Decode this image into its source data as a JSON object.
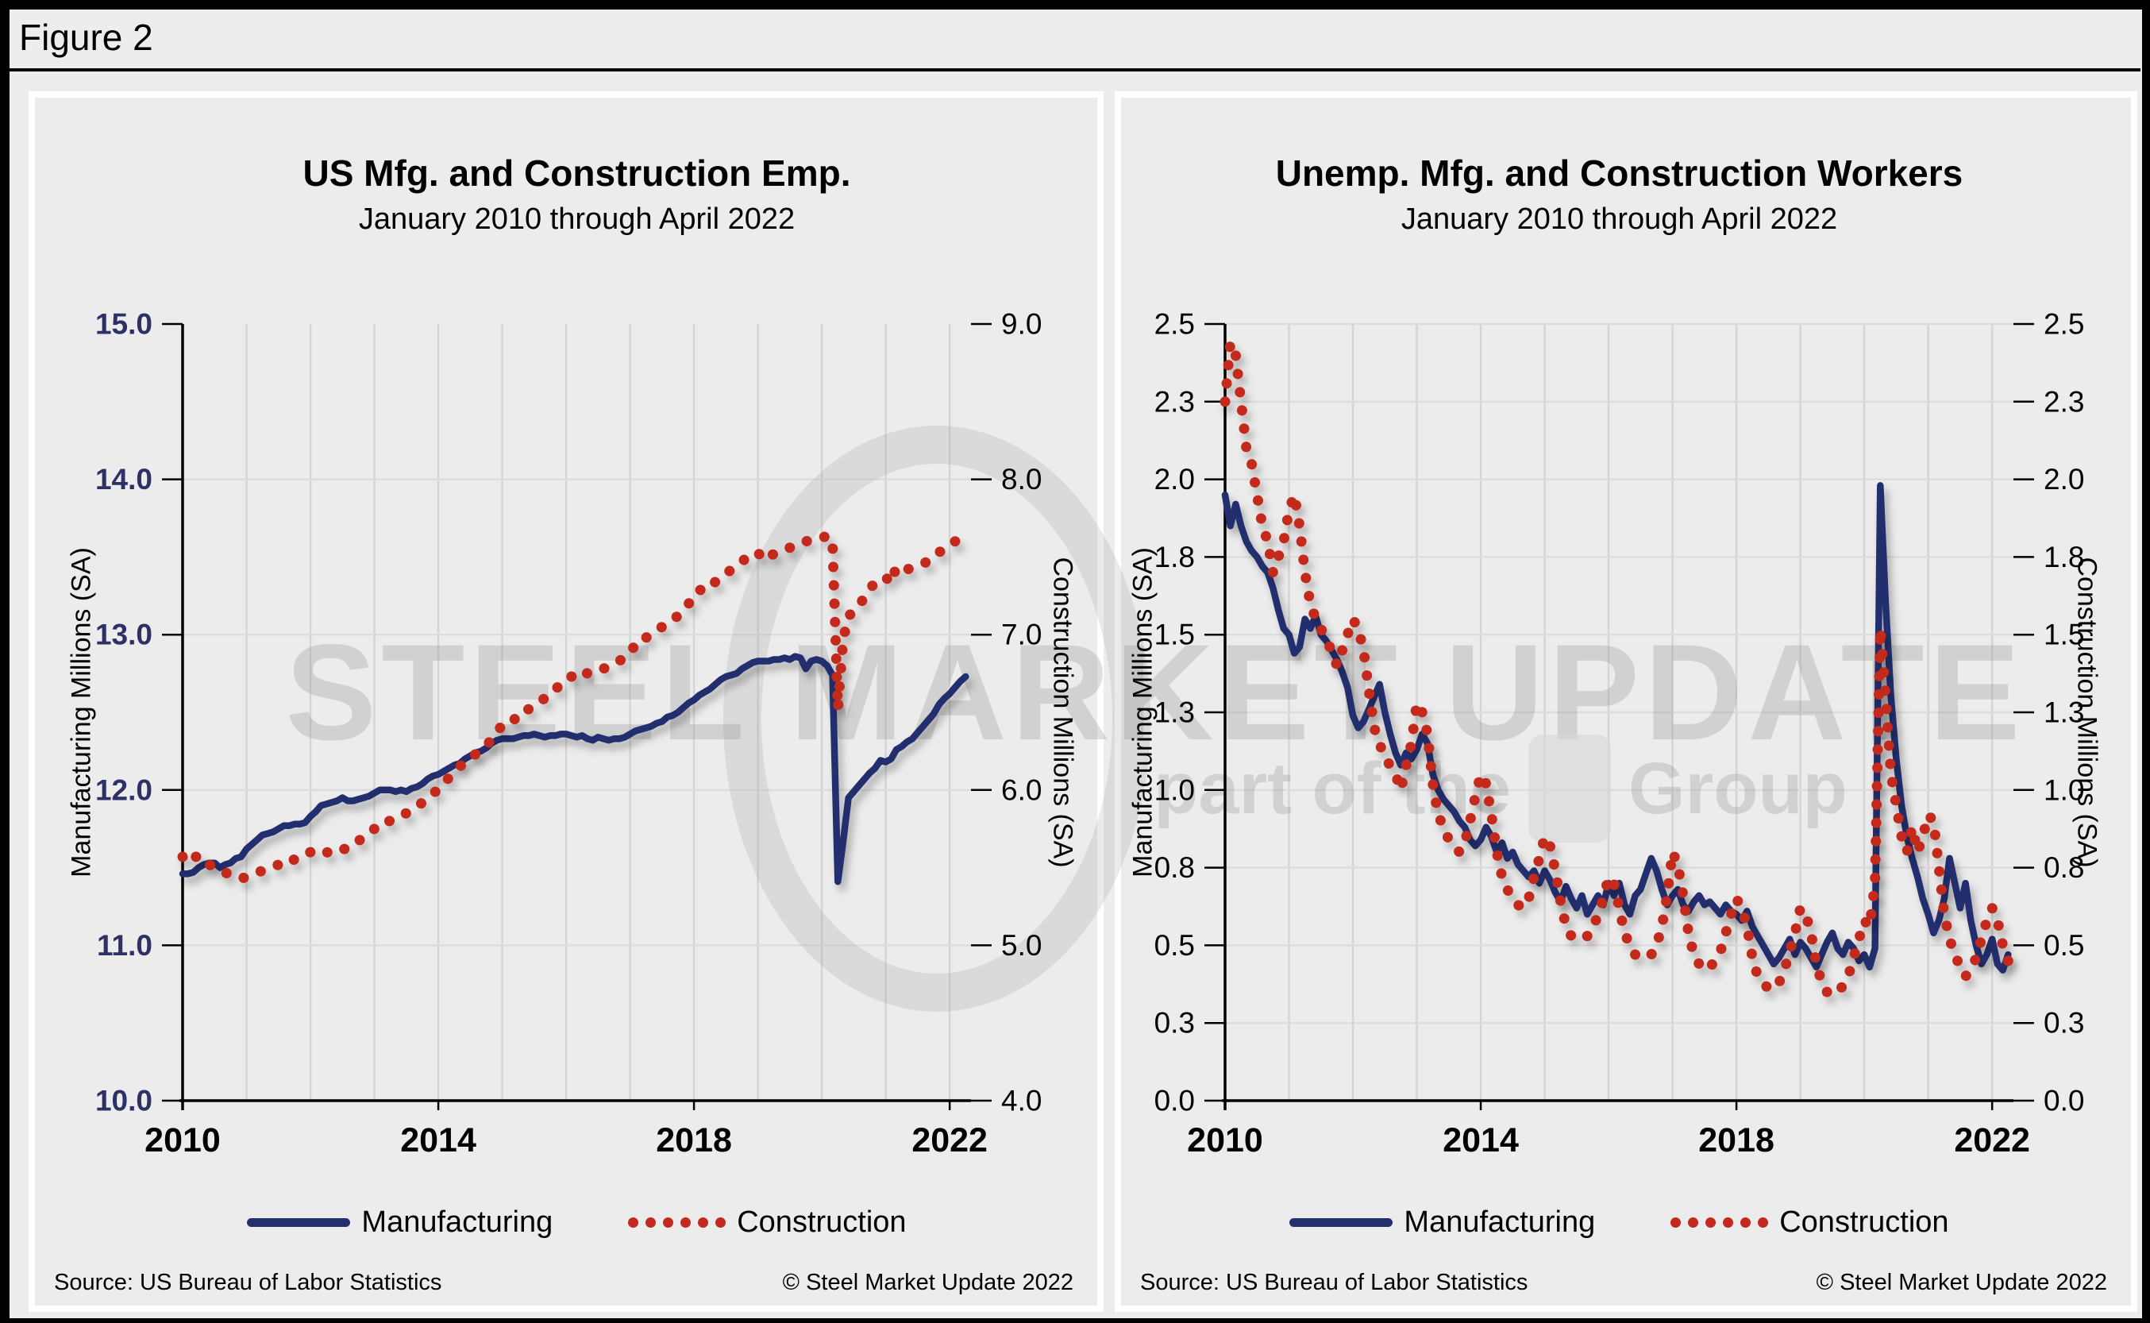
{
  "figure_label": "Figure 2",
  "colors": {
    "navy": "#242F6E",
    "red": "#C3291E",
    "navy_label": "#2D3166",
    "grid_vertical": "#D4D4D4",
    "grid_horizontal": "#DCDCDC",
    "axis": "#000000"
  },
  "watermark": {
    "line1": "STEEL MARKET UPDATE",
    "line2_prefix": "part of the",
    "line2_suffix": "Group"
  },
  "chart_data": [
    {
      "type": "line",
      "title": "US Mfg. and Construction Emp.",
      "subtitle": "January 2010 through April 2022",
      "x_axis": {
        "start": "2010-01",
        "end": "2022-04",
        "months": 148,
        "tick_labels": [
          "2010",
          "2014",
          "2018",
          "2022"
        ],
        "tick_year_offsets": [
          0,
          4,
          8,
          12
        ],
        "grid": "yearly"
      },
      "left_axis": {
        "label": "Manufacturing Millions (SA)",
        "range": [
          10,
          15
        ],
        "ticks": [
          {
            "label": "15.0",
            "v": 15.0
          },
          {
            "label": "14.0",
            "v": 14.0
          },
          {
            "label": "13.0",
            "v": 13.0
          },
          {
            "label": "12.0",
            "v": 12.0
          },
          {
            "label": "11.0",
            "v": 11.0
          },
          {
            "label": "10.0",
            "v": 10.0
          }
        ]
      },
      "right_axis": {
        "label": "Construction Millions (SA)",
        "range": [
          4,
          9
        ],
        "ticks": [
          {
            "label": "9.0",
            "v": 9.0
          },
          {
            "label": "8.0",
            "v": 8.0
          },
          {
            "label": "7.0",
            "v": 7.0
          },
          {
            "label": "6.0",
            "v": 6.0
          },
          {
            "label": "5.0",
            "v": 5.0
          },
          {
            "label": "4.0",
            "v": 4.0
          }
        ]
      },
      "grid_values_left_scale": [
        11,
        12,
        13,
        14
      ],
      "legend": [
        "Manufacturing",
        "Construction"
      ],
      "source": "Source: US Bureau  of Labor Statistics",
      "copyright": "© Steel Market Update 2022",
      "series": [
        {
          "name": "Manufacturing",
          "axis": "left",
          "style": "solid",
          "color_key": "navy",
          "values": [
            11.46,
            11.46,
            11.47,
            11.5,
            11.52,
            11.53,
            11.53,
            11.5,
            11.52,
            11.53,
            11.56,
            11.57,
            11.62,
            11.65,
            11.68,
            11.71,
            11.72,
            11.73,
            11.75,
            11.77,
            11.77,
            11.78,
            11.78,
            11.79,
            11.83,
            11.86,
            11.9,
            11.91,
            11.92,
            11.93,
            11.95,
            11.93,
            11.93,
            11.94,
            11.95,
            11.96,
            11.98,
            12.0,
            12.0,
            12.0,
            11.99,
            12.0,
            11.99,
            12.01,
            12.02,
            12.04,
            12.07,
            12.09,
            12.1,
            12.12,
            12.14,
            12.16,
            12.17,
            12.2,
            12.22,
            12.24,
            12.25,
            12.27,
            12.3,
            12.32,
            12.33,
            12.33,
            12.33,
            12.34,
            12.35,
            12.35,
            12.36,
            12.35,
            12.34,
            12.35,
            12.35,
            12.36,
            12.36,
            12.35,
            12.34,
            12.35,
            12.33,
            12.32,
            12.34,
            12.33,
            12.32,
            12.33,
            12.33,
            12.34,
            12.36,
            12.38,
            12.39,
            12.4,
            12.41,
            12.43,
            12.44,
            12.47,
            12.48,
            12.5,
            12.53,
            12.56,
            12.58,
            12.61,
            12.63,
            12.65,
            12.68,
            12.71,
            12.73,
            12.74,
            12.75,
            12.78,
            12.8,
            12.82,
            12.83,
            12.83,
            12.83,
            12.84,
            12.84,
            12.85,
            12.84,
            12.86,
            12.85,
            12.78,
            12.83,
            12.84,
            12.83,
            12.8,
            12.74,
            11.41,
            11.67,
            11.95,
            11.99,
            12.03,
            12.07,
            12.11,
            12.14,
            12.19,
            12.18,
            12.2,
            12.26,
            12.28,
            12.31,
            12.33,
            12.37,
            12.41,
            12.45,
            12.49,
            12.55,
            12.59,
            12.62,
            12.66,
            12.7,
            12.73
          ]
        },
        {
          "name": "Construction",
          "axis": "right",
          "style": "dotted",
          "color_key": "red",
          "values": [
            5.57,
            5.53,
            5.56,
            5.58,
            5.54,
            5.52,
            5.5,
            5.49,
            5.47,
            5.45,
            5.44,
            5.43,
            5.44,
            5.45,
            5.47,
            5.48,
            5.49,
            5.5,
            5.52,
            5.53,
            5.56,
            5.55,
            5.57,
            5.58,
            5.6,
            5.62,
            5.61,
            5.6,
            5.59,
            5.61,
            5.62,
            5.62,
            5.65,
            5.67,
            5.7,
            5.72,
            5.75,
            5.79,
            5.8,
            5.8,
            5.82,
            5.84,
            5.85,
            5.87,
            5.89,
            5.92,
            5.95,
            5.98,
            6.0,
            6.04,
            6.08,
            6.11,
            6.15,
            6.18,
            6.21,
            6.23,
            6.26,
            6.29,
            6.32,
            6.37,
            6.42,
            6.44,
            6.44,
            6.49,
            6.52,
            6.52,
            6.55,
            6.57,
            6.59,
            6.63,
            6.65,
            6.68,
            6.72,
            6.73,
            6.76,
            6.77,
            6.75,
            6.75,
            6.77,
            6.78,
            6.8,
            6.81,
            6.83,
            6.86,
            6.88,
            6.94,
            6.98,
            6.98,
            7.01,
            7.03,
            7.05,
            7.08,
            7.1,
            7.12,
            7.16,
            7.2,
            7.24,
            7.29,
            7.28,
            7.3,
            7.34,
            7.37,
            7.39,
            7.42,
            7.45,
            7.47,
            7.5,
            7.52,
            7.53,
            7.48,
            7.5,
            7.52,
            7.54,
            7.55,
            7.56,
            7.58,
            7.59,
            7.6,
            7.61,
            7.62,
            7.62,
            7.64,
            7.59,
            6.52,
            6.97,
            7.12,
            7.15,
            7.19,
            7.24,
            7.3,
            7.33,
            7.36,
            7.37,
            7.33,
            7.44,
            7.43,
            7.42,
            7.43,
            7.45,
            7.46,
            7.47,
            7.5,
            7.53,
            7.55,
            7.58,
            7.6,
            7.63,
            7.66
          ]
        }
      ]
    },
    {
      "type": "line",
      "title": "Unemp. Mfg. and Construction Workers",
      "subtitle": "January 2010 through April 2022",
      "x_axis": {
        "start": "2010-01",
        "end": "2022-04",
        "months": 148,
        "tick_labels": [
          "2010",
          "2014",
          "2018",
          "2022"
        ],
        "tick_year_offsets": [
          0,
          4,
          8,
          12
        ],
        "grid": "yearly"
      },
      "left_axis": {
        "label": "Manufacturing Millions (SA)",
        "range": [
          0,
          2.5
        ],
        "ticks": [
          {
            "label": "2.5",
            "v": 2.5
          },
          {
            "label": "2.3",
            "v": 2.25
          },
          {
            "label": "2.0",
            "v": 2.0
          },
          {
            "label": "1.8",
            "v": 1.75
          },
          {
            "label": "1.5",
            "v": 1.5
          },
          {
            "label": "1.3",
            "v": 1.25
          },
          {
            "label": "1.0",
            "v": 1.0
          },
          {
            "label": "0.8",
            "v": 0.75
          },
          {
            "label": "0.5",
            "v": 0.5
          },
          {
            "label": "0.3",
            "v": 0.25
          },
          {
            "label": "0.0",
            "v": 0.0
          }
        ]
      },
      "right_axis": {
        "label": "Construction Millions (SA)",
        "range": [
          0,
          2.5
        ],
        "ticks": [
          {
            "label": "2.5",
            "v": 2.5
          },
          {
            "label": "2.3",
            "v": 2.25
          },
          {
            "label": "2.0",
            "v": 2.0
          },
          {
            "label": "1.8",
            "v": 1.75
          },
          {
            "label": "1.5",
            "v": 1.5
          },
          {
            "label": "1.3",
            "v": 1.25
          },
          {
            "label": "1.0",
            "v": 1.0
          },
          {
            "label": "0.8",
            "v": 0.75
          },
          {
            "label": "0.5",
            "v": 0.5
          },
          {
            "label": "0.3",
            "v": 0.25
          },
          {
            "label": "0.0",
            "v": 0.0
          }
        ]
      },
      "grid_values_left_scale": [
        0.25,
        0.5,
        0.75,
        1.0,
        1.25,
        1.5,
        1.75,
        2.0,
        2.25,
        2.5
      ],
      "legend": [
        "Manufacturing",
        "Construction"
      ],
      "source": "Source: US Bureau  of Labor Statistics",
      "copyright": "© Steel Market Update 2022",
      "series": [
        {
          "name": "Manufacturing",
          "axis": "left",
          "style": "solid",
          "color_key": "navy",
          "values": [
            1.95,
            1.85,
            1.92,
            1.85,
            1.8,
            1.77,
            1.75,
            1.72,
            1.7,
            1.65,
            1.58,
            1.52,
            1.5,
            1.44,
            1.46,
            1.55,
            1.52,
            1.56,
            1.5,
            1.48,
            1.45,
            1.42,
            1.38,
            1.33,
            1.24,
            1.2,
            1.22,
            1.26,
            1.3,
            1.34,
            1.25,
            1.18,
            1.12,
            1.08,
            1.12,
            1.1,
            1.13,
            1.18,
            1.15,
            1.05,
            1.0,
            0.97,
            0.95,
            0.93,
            0.9,
            0.88,
            0.84,
            0.82,
            0.84,
            0.88,
            0.85,
            0.8,
            0.83,
            0.78,
            0.8,
            0.76,
            0.74,
            0.72,
            0.74,
            0.7,
            0.74,
            0.71,
            0.67,
            0.64,
            0.69,
            0.65,
            0.62,
            0.66,
            0.6,
            0.63,
            0.66,
            0.63,
            0.7,
            0.66,
            0.7,
            0.63,
            0.6,
            0.66,
            0.68,
            0.73,
            0.78,
            0.74,
            0.68,
            0.63,
            0.66,
            0.68,
            0.63,
            0.61,
            0.64,
            0.66,
            0.63,
            0.64,
            0.62,
            0.6,
            0.63,
            0.61,
            0.6,
            0.58,
            0.61,
            0.56,
            0.53,
            0.5,
            0.47,
            0.44,
            0.46,
            0.49,
            0.52,
            0.47,
            0.51,
            0.49,
            0.46,
            0.43,
            0.47,
            0.51,
            0.54,
            0.49,
            0.47,
            0.51,
            0.49,
            0.45,
            0.47,
            0.43,
            0.49,
            1.98,
            1.6,
            1.3,
            1.1,
            0.95,
            0.85,
            0.78,
            0.72,
            0.65,
            0.6,
            0.54,
            0.58,
            0.65,
            0.78,
            0.7,
            0.62,
            0.7,
            0.58,
            0.5,
            0.44,
            0.47,
            0.52,
            0.44,
            0.42,
            0.47
          ]
        },
        {
          "name": "Construction",
          "axis": "right",
          "style": "dotted",
          "color_key": "red",
          "values": [
            2.25,
            2.44,
            2.4,
            2.25,
            2.1,
            2.05,
            1.95,
            1.85,
            1.8,
            1.7,
            1.75,
            1.8,
            1.9,
            1.95,
            1.85,
            1.7,
            1.6,
            1.55,
            1.52,
            1.48,
            1.45,
            1.4,
            1.45,
            1.5,
            1.55,
            1.52,
            1.45,
            1.32,
            1.2,
            1.15,
            1.1,
            1.08,
            1.05,
            1.0,
            1.08,
            1.15,
            1.28,
            1.25,
            1.18,
            1.02,
            0.92,
            0.88,
            0.84,
            0.82,
            0.8,
            0.83,
            0.9,
            0.98,
            1.05,
            1.02,
            0.92,
            0.8,
            0.72,
            0.68,
            0.65,
            0.63,
            0.62,
            0.65,
            0.72,
            0.78,
            0.85,
            0.82,
            0.74,
            0.64,
            0.56,
            0.53,
            0.52,
            0.52,
            0.53,
            0.55,
            0.6,
            0.65,
            0.72,
            0.7,
            0.62,
            0.54,
            0.5,
            0.47,
            0.46,
            0.46,
            0.47,
            0.5,
            0.56,
            0.66,
            0.8,
            0.76,
            0.66,
            0.54,
            0.47,
            0.44,
            0.42,
            0.43,
            0.45,
            0.48,
            0.54,
            0.6,
            0.65,
            0.62,
            0.56,
            0.46,
            0.4,
            0.38,
            0.36,
            0.36,
            0.38,
            0.42,
            0.48,
            0.54,
            0.62,
            0.6,
            0.54,
            0.44,
            0.38,
            0.35,
            0.34,
            0.35,
            0.37,
            0.4,
            0.46,
            0.52,
            0.58,
            0.56,
            0.7,
            1.52,
            1.3,
            1.05,
            0.95,
            0.85,
            0.8,
            0.88,
            0.8,
            0.85,
            0.92,
            0.9,
            0.75,
            0.6,
            0.52,
            0.47,
            0.43,
            0.4,
            0.42,
            0.46,
            0.52,
            0.58,
            0.62,
            0.58,
            0.5,
            0.45
          ]
        }
      ]
    }
  ]
}
